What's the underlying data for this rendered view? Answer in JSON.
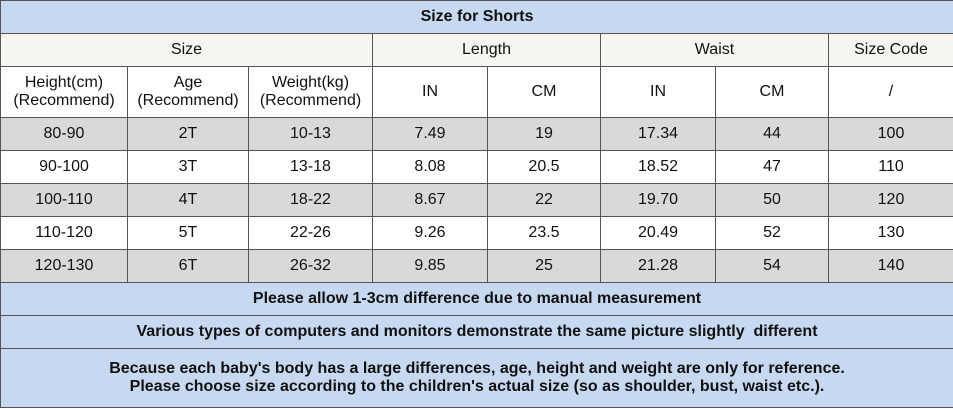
{
  "title": "Size for Shorts",
  "header": {
    "groups": [
      "Size",
      "Length",
      "Waist",
      "Size Code"
    ],
    "columns": [
      [
        "Height(cm)",
        "(Recommend)"
      ],
      [
        "Age",
        "(Recommend)"
      ],
      [
        "Weight(kg)",
        "(Recommend)"
      ],
      "IN",
      "CM",
      "IN",
      "CM",
      "/"
    ]
  },
  "table": {
    "rows": [
      [
        "80-90",
        "2T",
        "10-13",
        "7.49",
        "19",
        "17.34",
        "44",
        "100"
      ],
      [
        "90-100",
        "3T",
        "13-18",
        "8.08",
        "20.5",
        "18.52",
        "47",
        "110"
      ],
      [
        "100-110",
        "4T",
        "18-22",
        "8.67",
        "22",
        "19.70",
        "50",
        "120"
      ],
      [
        "110-120",
        "5T",
        "22-26",
        "9.26",
        "23.5",
        "20.49",
        "52",
        "130"
      ],
      [
        "120-130",
        "6T",
        "26-32",
        "9.85",
        "25",
        "21.28",
        "54",
        "140"
      ]
    ]
  },
  "notes": [
    [
      "Please allow 1-3cm difference due to manual measurement"
    ],
    [
      "Various types of computers and monitors demonstrate the same picture slightly  different"
    ],
    [
      "Because each baby's body has a large differences, age, height and weight are only for reference.",
      "Please choose size according to the children's actual size (so as shoulder, bust, waist etc.)."
    ]
  ]
}
